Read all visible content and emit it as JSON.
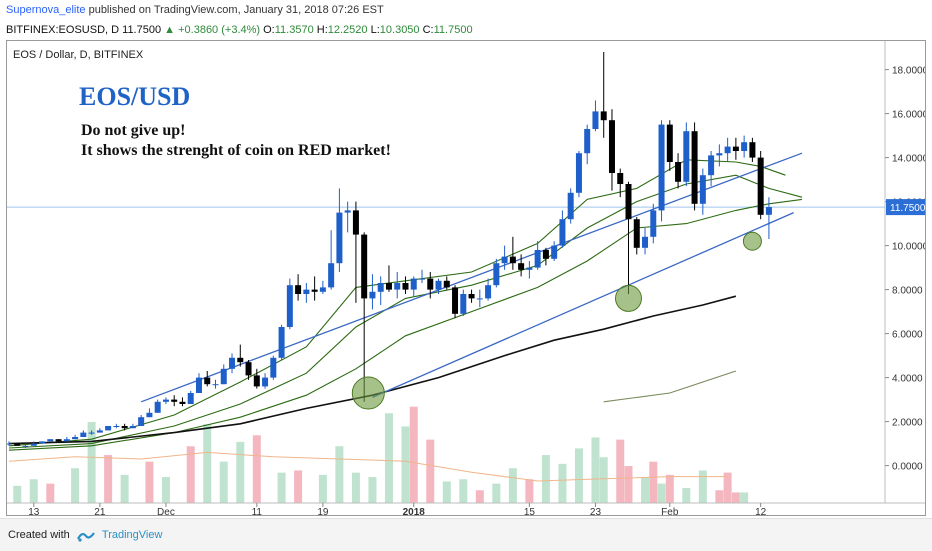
{
  "header": {
    "author": "Supernova_elite",
    "published": "published on TradingView.com, January 31, 2018 07:26 EST",
    "symbol": "BITFINEX:EOSUSD, D",
    "last": "11.7500",
    "change": "+0.3860 (+3.4%)",
    "o_label": "O:",
    "o_value": "11.3570",
    "h_label": "H:",
    "h_value": "12.2520",
    "l_label": "L:",
    "l_value": "10.3050",
    "c_label": "C:",
    "c_value": "11.7500"
  },
  "footer": {
    "created_with": "Created with",
    "brand": "TradingView"
  },
  "chart_data": {
    "type": "candlestick",
    "series_label": "EOS / Dollar, D, BITFINEX",
    "title": "EOS/USD",
    "annotation_lines": [
      "Do not give up!",
      "It shows the strenght of coin on RED market!"
    ],
    "y_ticks": [
      "18.0000",
      "16.0000",
      "14.0000",
      "12.0000",
      "10.0000",
      "8.0000",
      "6.0000",
      "4.0000",
      "2.0000",
      "0.0000"
    ],
    "y_tick_values": [
      18,
      16,
      14,
      12,
      10,
      8,
      6,
      4,
      2,
      0
    ],
    "x_ticks": [
      "13",
      "21",
      "Dec",
      "11",
      "19",
      "2018",
      "15",
      "23",
      "Feb",
      "12"
    ],
    "x_tick_index": [
      3,
      11,
      19,
      30,
      38,
      49,
      63,
      71,
      80,
      91
    ],
    "ylim": [
      -1.7,
      19.3
    ],
    "last_price": 11.75,
    "last_price_label": "11.7500",
    "colors": {
      "up": "#1f5fc9",
      "down": "#000000",
      "vol_up": "#bfe3cf",
      "vol_down": "#f4b7c0",
      "trend": "#3a68c4",
      "ma_green": "#2d6b14",
      "ma_black": "#111111",
      "ma_olive": "#7a8a5c",
      "vol_ma": "#f0b58a",
      "price_line": "#9fc4ef",
      "price_tag": "#2b6fd6",
      "highlight": "#6a9a3c"
    },
    "candles": [
      [
        1.0,
        1.1,
        0.9,
        1.0
      ],
      [
        1.0,
        1.0,
        0.9,
        0.9
      ],
      [
        0.9,
        1.0,
        0.8,
        0.9
      ],
      [
        0.9,
        1.1,
        0.9,
        1.0
      ],
      [
        1.0,
        1.1,
        1.0,
        1.1
      ],
      [
        1.1,
        1.2,
        1.1,
        1.2
      ],
      [
        1.2,
        1.2,
        1.1,
        1.1
      ],
      [
        1.1,
        1.3,
        1.1,
        1.2
      ],
      [
        1.2,
        1.4,
        1.2,
        1.3
      ],
      [
        1.3,
        1.6,
        1.3,
        1.5
      ],
      [
        1.5,
        1.6,
        1.4,
        1.5
      ],
      [
        1.5,
        1.7,
        1.5,
        1.6
      ],
      [
        1.6,
        1.8,
        1.6,
        1.8
      ],
      [
        1.8,
        1.9,
        1.7,
        1.8
      ],
      [
        1.8,
        1.9,
        1.6,
        1.7
      ],
      [
        1.7,
        1.9,
        1.7,
        1.8
      ],
      [
        1.8,
        2.3,
        1.8,
        2.2
      ],
      [
        2.2,
        2.6,
        2.2,
        2.4
      ],
      [
        2.4,
        3.0,
        2.4,
        2.9
      ],
      [
        2.9,
        3.1,
        2.8,
        3.0
      ],
      [
        3.0,
        3.2,
        2.7,
        2.9
      ],
      [
        2.9,
        3.1,
        2.7,
        2.8
      ],
      [
        2.8,
        3.4,
        2.8,
        3.3
      ],
      [
        3.3,
        4.2,
        3.3,
        4.0
      ],
      [
        4.0,
        4.3,
        3.6,
        3.7
      ],
      [
        3.7,
        3.9,
        3.5,
        3.7
      ],
      [
        3.7,
        4.6,
        3.7,
        4.4
      ],
      [
        4.4,
        5.1,
        4.2,
        4.9
      ],
      [
        4.9,
        5.5,
        4.5,
        4.7
      ],
      [
        4.7,
        4.8,
        3.9,
        4.1
      ],
      [
        4.1,
        4.4,
        3.5,
        3.6
      ],
      [
        3.6,
        4.2,
        3.5,
        4.0
      ],
      [
        4.0,
        5.0,
        3.9,
        4.9
      ],
      [
        4.9,
        6.4,
        4.8,
        6.3
      ],
      [
        6.3,
        8.5,
        6.2,
        8.2
      ],
      [
        8.2,
        8.7,
        7.5,
        7.8
      ],
      [
        7.8,
        8.3,
        7.4,
        8.0
      ],
      [
        8.0,
        8.6,
        7.5,
        7.9
      ],
      [
        7.9,
        8.4,
        7.8,
        8.1
      ],
      [
        8.1,
        10.7,
        8.0,
        9.2
      ],
      [
        9.2,
        12.6,
        8.8,
        11.5
      ],
      [
        11.5,
        12.0,
        10.6,
        11.6
      ],
      [
        11.6,
        12.0,
        7.4,
        10.5
      ],
      [
        10.5,
        10.6,
        2.9,
        7.6
      ],
      [
        7.6,
        8.7,
        7.1,
        7.9
      ],
      [
        7.9,
        8.6,
        7.3,
        8.3
      ],
      [
        8.3,
        9.1,
        7.9,
        8.0
      ],
      [
        8.0,
        8.8,
        7.6,
        8.3
      ],
      [
        8.3,
        8.6,
        7.8,
        8.0
      ],
      [
        8.0,
        8.6,
        7.7,
        8.5
      ],
      [
        8.5,
        8.9,
        8.3,
        8.5
      ],
      [
        8.5,
        8.8,
        7.6,
        8.0
      ],
      [
        8.0,
        8.5,
        7.8,
        8.4
      ],
      [
        8.4,
        8.6,
        8.0,
        8.1
      ],
      [
        8.1,
        8.2,
        6.7,
        6.9
      ],
      [
        6.9,
        8.0,
        6.8,
        7.8
      ],
      [
        7.8,
        8.0,
        7.4,
        7.6
      ],
      [
        7.6,
        8.0,
        7.2,
        7.6
      ],
      [
        7.6,
        8.5,
        7.5,
        8.2
      ],
      [
        8.2,
        9.4,
        8.1,
        9.2
      ],
      [
        9.2,
        10.0,
        8.9,
        9.5
      ],
      [
        9.5,
        10.4,
        8.9,
        9.2
      ],
      [
        9.2,
        9.6,
        8.6,
        8.9
      ],
      [
        8.9,
        9.3,
        8.5,
        9.0
      ],
      [
        9.0,
        10.2,
        8.9,
        9.8
      ],
      [
        9.8,
        9.9,
        9.1,
        9.4
      ],
      [
        9.4,
        10.2,
        9.3,
        10.0
      ],
      [
        10.0,
        11.6,
        9.9,
        11.2
      ],
      [
        11.2,
        12.6,
        11.0,
        12.4
      ],
      [
        12.4,
        14.3,
        12.2,
        14.2
      ],
      [
        14.2,
        15.5,
        13.7,
        15.3
      ],
      [
        15.3,
        16.6,
        15.2,
        16.1
      ],
      [
        16.1,
        18.8,
        14.9,
        15.7
      ],
      [
        15.7,
        16.2,
        12.5,
        13.3
      ],
      [
        13.3,
        13.5,
        12.2,
        12.8
      ],
      [
        12.8,
        12.9,
        7.8,
        11.2
      ],
      [
        11.2,
        11.3,
        9.6,
        9.9
      ],
      [
        9.9,
        10.8,
        9.6,
        10.4
      ],
      [
        10.4,
        11.9,
        10.1,
        11.6
      ],
      [
        11.6,
        15.7,
        11.1,
        15.5
      ],
      [
        15.5,
        15.7,
        13.4,
        13.8
      ],
      [
        13.8,
        14.2,
        12.6,
        12.9
      ],
      [
        12.9,
        15.6,
        12.7,
        15.2
      ],
      [
        15.2,
        15.6,
        11.6,
        11.9
      ],
      [
        11.9,
        13.5,
        11.4,
        13.2
      ],
      [
        13.2,
        14.3,
        12.7,
        14.1
      ],
      [
        14.1,
        14.6,
        13.6,
        14.2
      ],
      [
        14.2,
        14.9,
        13.8,
        14.5
      ],
      [
        14.5,
        14.9,
        13.9,
        14.3
      ],
      [
        14.3,
        15.0,
        14.0,
        14.7
      ],
      [
        14.7,
        14.9,
        13.8,
        14.0
      ],
      [
        14.0,
        14.3,
        11.2,
        11.4
      ],
      [
        11.4,
        12.2,
        10.3,
        11.75
      ]
    ],
    "volume_bars": [
      {
        "index": 1,
        "dir": "up",
        "value": 0.8
      },
      {
        "index": 3,
        "dir": "up",
        "value": 1.1
      },
      {
        "index": 5,
        "dir": "down",
        "value": 0.9
      },
      {
        "index": 8,
        "dir": "up",
        "value": 1.6
      },
      {
        "index": 10,
        "dir": "up",
        "value": 3.7
      },
      {
        "index": 12,
        "dir": "down",
        "value": 2.2
      },
      {
        "index": 14,
        "dir": "up",
        "value": 1.3
      },
      {
        "index": 17,
        "dir": "down",
        "value": 1.9
      },
      {
        "index": 19,
        "dir": "up",
        "value": 1.2
      },
      {
        "index": 22,
        "dir": "down",
        "value": 2.6
      },
      {
        "index": 24,
        "dir": "up",
        "value": 3.6
      },
      {
        "index": 26,
        "dir": "up",
        "value": 1.9
      },
      {
        "index": 28,
        "dir": "up",
        "value": 2.8
      },
      {
        "index": 30,
        "dir": "down",
        "value": 3.1
      },
      {
        "index": 33,
        "dir": "up",
        "value": 1.4
      },
      {
        "index": 35,
        "dir": "down",
        "value": 1.5
      },
      {
        "index": 38,
        "dir": "up",
        "value": 1.3
      },
      {
        "index": 40,
        "dir": "up",
        "value": 2.6
      },
      {
        "index": 42,
        "dir": "up",
        "value": 1.4
      },
      {
        "index": 44,
        "dir": "up",
        "value": 1.2
      },
      {
        "index": 46,
        "dir": "up",
        "value": 4.1
      },
      {
        "index": 48,
        "dir": "up",
        "value": 3.5
      },
      {
        "index": 49,
        "dir": "down",
        "value": 4.4
      },
      {
        "index": 51,
        "dir": "down",
        "value": 2.9
      },
      {
        "index": 53,
        "dir": "up",
        "value": 1.0
      },
      {
        "index": 55,
        "dir": "up",
        "value": 1.1
      },
      {
        "index": 57,
        "dir": "down",
        "value": 0.6
      },
      {
        "index": 59,
        "dir": "up",
        "value": 0.9
      },
      {
        "index": 61,
        "dir": "up",
        "value": 1.6
      },
      {
        "index": 63,
        "dir": "down",
        "value": 1.1
      },
      {
        "index": 65,
        "dir": "up",
        "value": 2.2
      },
      {
        "index": 67,
        "dir": "up",
        "value": 1.8
      },
      {
        "index": 69,
        "dir": "up",
        "value": 2.5
      },
      {
        "index": 71,
        "dir": "up",
        "value": 3.0
      },
      {
        "index": 72,
        "dir": "up",
        "value": 2.1
      },
      {
        "index": 74,
        "dir": "down",
        "value": 2.9
      },
      {
        "index": 75,
        "dir": "down",
        "value": 1.7
      },
      {
        "index": 77,
        "dir": "up",
        "value": 1.2
      },
      {
        "index": 78,
        "dir": "down",
        "value": 1.9
      },
      {
        "index": 79,
        "dir": "up",
        "value": 0.9
      },
      {
        "index": 80,
        "dir": "down",
        "value": 1.3
      },
      {
        "index": 82,
        "dir": "up",
        "value": 0.7
      },
      {
        "index": 84,
        "dir": "up",
        "value": 1.5
      },
      {
        "index": 86,
        "dir": "down",
        "value": 0.6
      },
      {
        "index": 87,
        "dir": "down",
        "value": 1.4
      },
      {
        "index": 88,
        "dir": "down",
        "value": 0.5
      },
      {
        "index": 89,
        "dir": "up",
        "value": 0.5
      }
    ],
    "volume_ma": [
      [
        0,
        0.2
      ],
      [
        8,
        0.4
      ],
      [
        16,
        0.3
      ],
      [
        24,
        0.6
      ],
      [
        32,
        0.4
      ],
      [
        40,
        0.3
      ],
      [
        48,
        0.2
      ],
      [
        56,
        -0.3
      ],
      [
        64,
        -0.7
      ],
      [
        72,
        -0.6
      ],
      [
        80,
        -0.5
      ],
      [
        84,
        -0.5
      ],
      [
        87,
        -0.5
      ]
    ],
    "trendlines": [
      {
        "name": "upper-trendline",
        "points": [
          [
            16,
            2.9
          ],
          [
            96,
            14.2
          ]
        ]
      },
      {
        "name": "lower-trendline",
        "points": [
          [
            44,
            3.1
          ],
          [
            95,
            11.5
          ]
        ]
      }
    ],
    "moving_averages": [
      {
        "name": "ma-fast",
        "color": "ma_green",
        "points": [
          [
            0,
            0.9
          ],
          [
            10,
            1.2
          ],
          [
            20,
            2.3
          ],
          [
            28,
            3.8
          ],
          [
            36,
            5.4
          ],
          [
            42,
            8.1
          ],
          [
            48,
            8.4
          ],
          [
            56,
            8.8
          ],
          [
            64,
            10.1
          ],
          [
            70,
            12.1
          ],
          [
            76,
            12.6
          ],
          [
            82,
            13.9
          ],
          [
            88,
            13.8
          ],
          [
            91,
            13.6
          ],
          [
            94,
            13.2
          ]
        ]
      },
      {
        "name": "ma-medium",
        "color": "ma_green",
        "points": [
          [
            0,
            0.8
          ],
          [
            10,
            1.0
          ],
          [
            20,
            1.8
          ],
          [
            28,
            2.8
          ],
          [
            36,
            4.2
          ],
          [
            42,
            6.3
          ],
          [
            48,
            7.6
          ],
          [
            56,
            8.2
          ],
          [
            64,
            9.1
          ],
          [
            70,
            10.8
          ],
          [
            76,
            12.0
          ],
          [
            82,
            12.8
          ],
          [
            88,
            13.2
          ],
          [
            92,
            12.6
          ],
          [
            96,
            12.2
          ]
        ]
      },
      {
        "name": "ma-slow",
        "color": "ma_green",
        "points": [
          [
            0,
            0.7
          ],
          [
            10,
            0.9
          ],
          [
            20,
            1.5
          ],
          [
            28,
            2.2
          ],
          [
            36,
            3.2
          ],
          [
            42,
            4.4
          ],
          [
            48,
            5.9
          ],
          [
            56,
            7.0
          ],
          [
            64,
            8.1
          ],
          [
            70,
            9.3
          ],
          [
            76,
            10.8
          ],
          [
            82,
            11.0
          ],
          [
            88,
            11.6
          ],
          [
            92,
            11.9
          ],
          [
            96,
            12.1
          ]
        ]
      },
      {
        "name": "ma-long",
        "color": "ma_black",
        "points": [
          [
            0,
            1.0
          ],
          [
            10,
            1.1
          ],
          [
            20,
            1.5
          ],
          [
            28,
            1.9
          ],
          [
            36,
            2.6
          ],
          [
            44,
            3.2
          ],
          [
            52,
            4.0
          ],
          [
            60,
            5.0
          ],
          [
            66,
            5.7
          ],
          [
            72,
            6.2
          ],
          [
            78,
            6.8
          ],
          [
            84,
            7.3
          ],
          [
            88,
            7.7
          ]
        ]
      },
      {
        "name": "ma-olive",
        "color": "ma_olive",
        "points": [
          [
            72,
            2.9
          ],
          [
            80,
            3.3
          ],
          [
            88,
            4.3
          ]
        ]
      }
    ],
    "highlight_circles": [
      {
        "name": "support-circle-1",
        "index": 43.5,
        "value": 3.3,
        "r": 16
      },
      {
        "name": "support-circle-2",
        "index": 75.0,
        "value": 7.6,
        "r": 13
      },
      {
        "name": "support-circle-3",
        "index": 90.0,
        "value": 10.2,
        "r": 9
      }
    ]
  }
}
